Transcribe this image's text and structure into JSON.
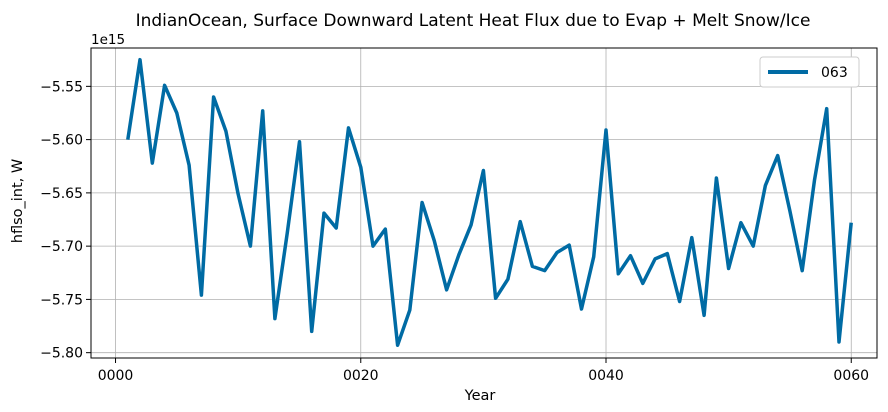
{
  "chart_data": {
    "type": "line",
    "title": "IndianOcean, Surface Downward Latent Heat Flux due to Evap + Melt Snow/Ice",
    "xlabel": "Year",
    "ylabel": "hflso_int, W",
    "offset_text": "1e15",
    "x_ticks": [
      {
        "value": 0,
        "label": "0000"
      },
      {
        "value": 20,
        "label": "0020"
      },
      {
        "value": 40,
        "label": "0040"
      },
      {
        "value": 60,
        "label": "0060"
      }
    ],
    "y_ticks": [
      {
        "value": -5.55,
        "label": "−5.55"
      },
      {
        "value": -5.6,
        "label": "−5.60"
      },
      {
        "value": -5.65,
        "label": "−5.65"
      },
      {
        "value": -5.7,
        "label": "−5.70"
      },
      {
        "value": -5.75,
        "label": "−5.75"
      },
      {
        "value": -5.8,
        "label": "−5.80"
      }
    ],
    "xlim": [
      -2,
      62.1
    ],
    "ylim": [
      -5.805,
      -5.514
    ],
    "grid": true,
    "legend_position": "top-right",
    "series": [
      {
        "name": "063",
        "color": "#006ba4",
        "x": [
          1,
          2,
          3,
          4,
          5,
          6,
          7,
          8,
          9,
          10,
          11,
          12,
          13,
          14,
          15,
          16,
          17,
          18,
          19,
          20,
          21,
          22,
          23,
          24,
          25,
          26,
          27,
          28,
          29,
          30,
          31,
          32,
          33,
          34,
          35,
          36,
          37,
          38,
          39,
          40,
          41,
          42,
          43,
          44,
          45,
          46,
          47,
          48,
          49,
          50,
          51,
          52,
          53,
          54,
          55,
          56,
          57,
          58,
          59,
          60
        ],
        "values": [
          -5.6,
          -5.525,
          -5.622,
          -5.549,
          -5.575,
          -5.624,
          -5.746,
          -5.56,
          -5.592,
          -5.651,
          -5.7,
          -5.573,
          -5.768,
          -5.688,
          -5.602,
          -5.78,
          -5.669,
          -5.683,
          -5.589,
          -5.626,
          -5.7,
          -5.684,
          -5.793,
          -5.76,
          -5.659,
          -5.695,
          -5.741,
          -5.708,
          -5.68,
          -5.629,
          -5.749,
          -5.731,
          -5.677,
          -5.719,
          -5.723,
          -5.706,
          -5.699,
          -5.759,
          -5.71,
          -5.591,
          -5.726,
          -5.709,
          -5.735,
          -5.712,
          -5.707,
          -5.752,
          -5.692,
          -5.765,
          -5.636,
          -5.721,
          -5.678,
          -5.7,
          -5.643,
          -5.615,
          -5.667,
          -5.723,
          -5.638,
          -5.571,
          -5.79,
          -5.678
        ]
      }
    ]
  }
}
